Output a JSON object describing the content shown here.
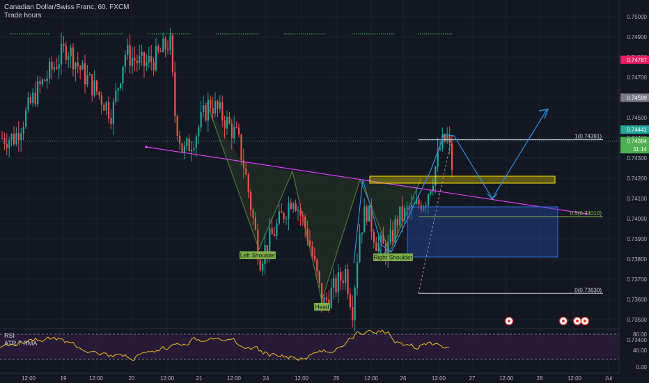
{
  "header": {
    "symbol_title": "Canadian Dollar/Swiss Franc, 60, FXCM",
    "session_label": "Trade hours"
  },
  "indicators": {
    "rsi_label": "RSI",
    "atr_label": "ATR 7 RMA"
  },
  "price_axis": {
    "ticks": [
      0.75,
      0.749,
      0.748,
      0.747,
      0.746,
      0.745,
      0.744,
      0.743,
      0.742,
      0.741,
      0.74,
      0.739,
      0.738,
      0.737,
      0.736,
      0.735,
      0.734
    ],
    "tick_labels": [
      "0.75000",
      "0.74900",
      "0.74800",
      "0.74700",
      "0.74600",
      "0.74500",
      "0.74400",
      "0.74300",
      "0.74200",
      "0.74100",
      "0.74000",
      "0.73900",
      "0.73800",
      "0.73700",
      "0.73600",
      "0.73500",
      "0.73400"
    ],
    "badges": [
      {
        "text": "0.74787",
        "value": 0.74787,
        "color": "#e91e63"
      },
      {
        "text": "0.74599",
        "value": 0.74599,
        "color": "#787b86"
      },
      {
        "text": "0.74441",
        "value": 0.74441,
        "color": "#26a69a"
      },
      {
        "text": "0.74384",
        "value": 0.74384,
        "color": "#4caf50"
      },
      {
        "text": "31:14",
        "value": 0.74344,
        "color": "#4caf50"
      }
    ],
    "partial_label": "0.7439"
  },
  "rsi_axis": {
    "ticks": [
      "80.00",
      "40.00",
      "0.00"
    ],
    "values": [
      80,
      40,
      0
    ]
  },
  "time_axis": {
    "labels": [
      "12:00",
      "19",
      "12:00",
      "20",
      "12:00",
      "21",
      "12:00",
      "24",
      "12:00",
      "25",
      "12:00",
      "26",
      "12:00",
      "27",
      "12:00",
      "28",
      "12:00",
      "Jul"
    ]
  },
  "annotations": {
    "left_shoulder": "Left Shoulder",
    "head": "Head",
    "right_shoulder": "Right Shoulder",
    "fib_1": "1(0.74391)",
    "fib_05": "0.5(0.74010)",
    "fib_0": "0(0.73630)"
  },
  "colors": {
    "background": "#131722",
    "up": "#26a69a",
    "down": "#ef5350",
    "grid": "#1e222d",
    "pattern_fill": "#1f2b22",
    "pattern_line": "#4d7a3a",
    "neckline": "#e040fb",
    "projection": "#2f8fe0",
    "box_blue": "#1c3166",
    "zone_yellow": "#ffe600",
    "rsi_band": "#2a1b3a",
    "rsi_line": "#f0c020",
    "label_bg": "#7fb04a",
    "fib": "#d1d4dc",
    "fib_mid": "#8bc34a"
  },
  "chart_data": {
    "type": "candlestick",
    "symbol": "Canadian Dollar/Swiss Franc",
    "interval": "60",
    "source": "FXCM",
    "last_price": 0.74384,
    "countdown": "31:14",
    "price_levels": {
      "high_marker": 0.74787,
      "level_2": 0.74599,
      "level_3": 0.74441
    },
    "pattern": {
      "name": "Inverse Head and Shoulders",
      "points": [
        {
          "label": "",
          "price": 0.7455
        },
        {
          "label": "Left Shoulder",
          "price": 0.7378
        },
        {
          "label": "",
          "price": 0.742
        },
        {
          "label": "Head",
          "price": 0.7353
        },
        {
          "label": "",
          "price": 0.7415
        },
        {
          "label": "Right Shoulder",
          "price": 0.7378
        },
        {
          "label": "",
          "price": 0.7413
        }
      ]
    },
    "fibonacci": [
      {
        "level": 1,
        "price": 0.74391
      },
      {
        "level": 0.5,
        "price": 0.7401
      },
      {
        "level": 0,
        "price": 0.7363
      }
    ],
    "rsi": {
      "upper": 80,
      "lower": 20
    },
    "ylim": [
      0.734,
      0.7504
    ]
  }
}
